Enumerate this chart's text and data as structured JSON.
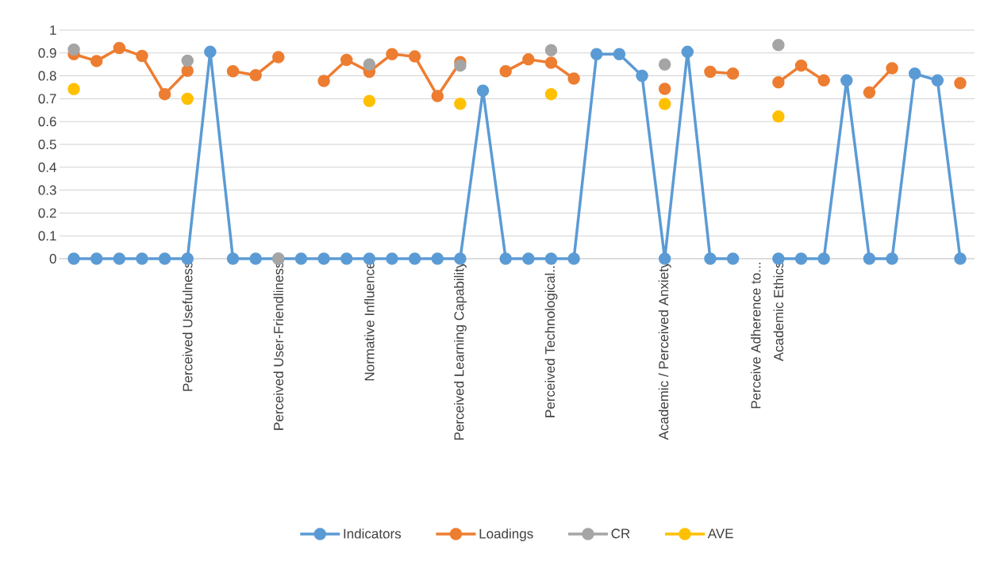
{
  "chart_data": {
    "type": "line",
    "categories": [
      null,
      null,
      null,
      null,
      null,
      "Perceived Usefulness",
      null,
      null,
      null,
      "Perceived User-Friendliness",
      null,
      null,
      null,
      "Normative Influence",
      null,
      null,
      null,
      "Perceived Learning Capability",
      null,
      null,
      null,
      "Perceived Technological...",
      null,
      null,
      null,
      null,
      "Academic / Perceived Anxiety",
      null,
      null,
      null,
      "Perceive Adherence to...",
      "Academic Ethics",
      null,
      null,
      null,
      null,
      null,
      null,
      null,
      null
    ],
    "series": [
      {
        "name": "Indicators",
        "color": "#5b9bd5",
        "values": [
          0,
          0,
          0,
          0,
          0,
          0,
          0.905,
          0,
          0,
          0,
          0,
          0,
          0,
          0,
          0,
          0,
          0,
          0,
          0.735,
          0,
          0,
          0,
          0,
          0.895,
          0.895,
          0.8,
          0,
          0.905,
          0,
          0,
          null,
          0,
          0,
          0,
          0.78,
          0,
          0,
          0.81,
          0.78,
          0
        ]
      },
      {
        "name": "Loadings",
        "color": "#ed7d31",
        "values": [
          0.895,
          0.865,
          0.922,
          0.887,
          0.72,
          0.822,
          null,
          0.82,
          0.803,
          0.882,
          null,
          0.778,
          0.87,
          0.818,
          0.895,
          0.885,
          0.712,
          0.86,
          null,
          0.82,
          0.872,
          0.858,
          0.788,
          null,
          null,
          null,
          0.743,
          null,
          0.818,
          0.81,
          null,
          0.772,
          0.845,
          0.78,
          null,
          0.727,
          0.833,
          null,
          null,
          0.768
        ]
      },
      {
        "name": "CR",
        "type": "scatter",
        "color": "#a5a5a5",
        "values": [
          0.915,
          null,
          null,
          null,
          null,
          0.866,
          null,
          null,
          null,
          0,
          null,
          null,
          null,
          0.85,
          null,
          null,
          null,
          0.845,
          null,
          null,
          null,
          0.912,
          null,
          null,
          null,
          null,
          0.85,
          null,
          null,
          null,
          null,
          0.935,
          null,
          null,
          null,
          null,
          null,
          null,
          null,
          null
        ]
      },
      {
        "name": "AVE",
        "type": "scatter",
        "color": "#ffc000",
        "values": [
          0.742,
          null,
          null,
          null,
          null,
          0.7,
          null,
          null,
          null,
          null,
          null,
          null,
          null,
          0.69,
          null,
          null,
          null,
          0.678,
          null,
          null,
          null,
          0.72,
          null,
          null,
          null,
          null,
          0.677,
          null,
          null,
          null,
          null,
          0.622,
          null,
          null,
          null,
          null,
          null,
          null,
          null,
          null
        ]
      }
    ],
    "ylim": [
      0,
      1
    ],
    "yticks": [
      0,
      0.1,
      0.2,
      0.3,
      0.4,
      0.5,
      0.6,
      0.7,
      0.8,
      0.9,
      1
    ],
    "grid": "y",
    "legend": "bottom",
    "marker": "circle",
    "line_style": "solid"
  }
}
